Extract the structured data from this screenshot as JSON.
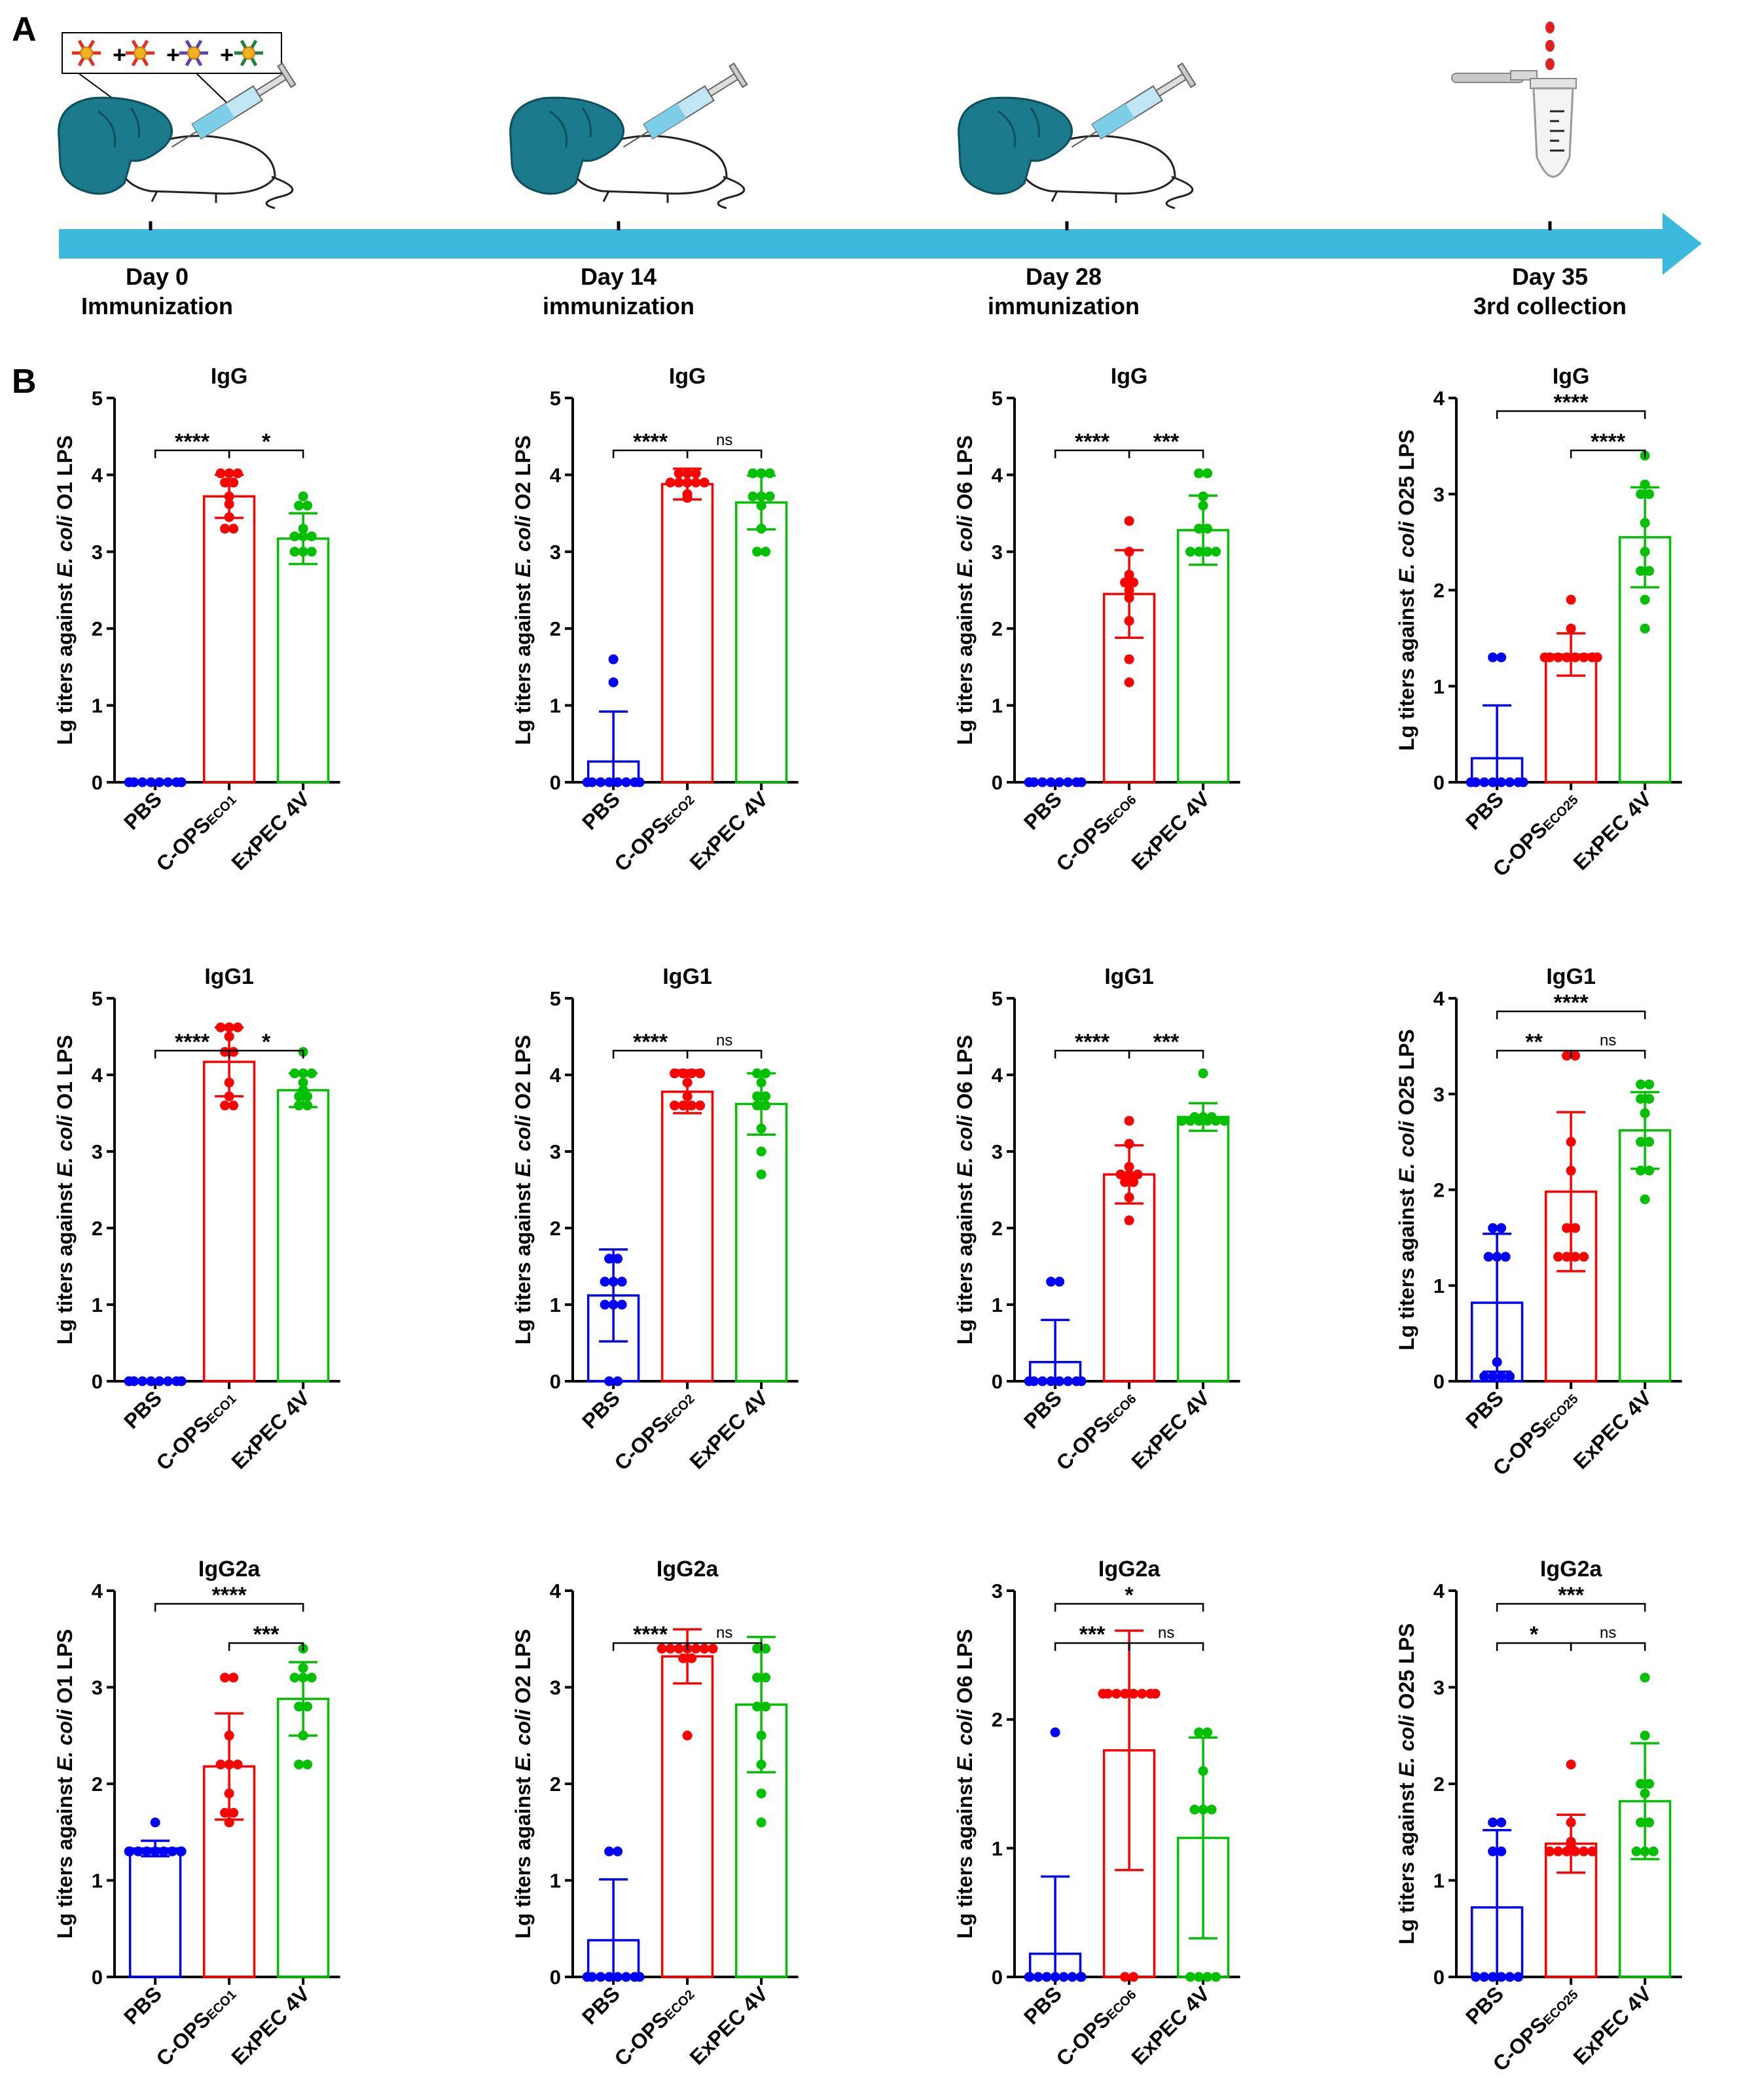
{
  "panel_labels": {
    "a": "A",
    "b": "B"
  },
  "timeline": {
    "arrow_color": "#3cb9dc",
    "mix_symbols": [
      "+",
      "+",
      "+"
    ],
    "events": [
      {
        "day": "Day 0",
        "event": "Immunization"
      },
      {
        "day": "Day 14",
        "event": "immunization"
      },
      {
        "day": "Day 28",
        "event": "immunization"
      },
      {
        "day": "Day 35",
        "event": "3rd collection"
      }
    ]
  },
  "colors": {
    "PBS": "#0000ff",
    "COPS": "#ff0000",
    "ExPEC": "#00c000"
  },
  "chart_data": [
    {
      "type": "bar",
      "title": "IgG",
      "ylabel_pre": "Lg titers against ",
      "ylabel_it": "E. coli",
      "ylabel_post": " O1 LPS",
      "ylim": [
        0,
        5
      ],
      "yticks": [
        "0",
        "1",
        "2",
        "3",
        "4",
        "5"
      ],
      "categories": [
        {
          "main": "PBS",
          "sub": ""
        },
        {
          "main": "C-OPS",
          "sub": "ECO1"
        },
        {
          "main": "ExPEC 4V",
          "sub": ""
        }
      ],
      "means": [
        0,
        3.72,
        3.17
      ],
      "sd": [
        0,
        0.28,
        0.33
      ],
      "points": [
        [
          0,
          0,
          0,
          0,
          0,
          0,
          0,
          0,
          0,
          0
        ],
        [
          4.02,
          4.02,
          4.02,
          3.9,
          3.9,
          3.72,
          3.62,
          3.45,
          3.3,
          3.3
        ],
        [
          3.72,
          3.6,
          3.6,
          3.3,
          3.2,
          3.2,
          3.2,
          3.0,
          3.0,
          3.0
        ]
      ],
      "significance": [
        {
          "groups": [
            0,
            1
          ],
          "label": "****"
        },
        {
          "groups": [
            1,
            2
          ],
          "label": "*"
        }
      ]
    },
    {
      "type": "bar",
      "title": "IgG",
      "ylabel_pre": "Lg titers against ",
      "ylabel_it": "E. coli",
      "ylabel_post": " O2 LPS",
      "ylim": [
        0,
        5
      ],
      "yticks": [
        "0",
        "1",
        "2",
        "3",
        "4",
        "5"
      ],
      "categories": [
        {
          "main": "PBS",
          "sub": ""
        },
        {
          "main": "C-OPS",
          "sub": "ECO2"
        },
        {
          "main": "ExPEC 4V",
          "sub": ""
        }
      ],
      "means": [
        0.27,
        3.88,
        3.64
      ],
      "sd": [
        0.65,
        0.2,
        0.35
      ],
      "points": [
        [
          1.6,
          1.3,
          0,
          0,
          0,
          0,
          0,
          0,
          0,
          0
        ],
        [
          4.02,
          4.02,
          4.02,
          3.9,
          3.9,
          3.9,
          3.9,
          3.9,
          3.75,
          3.7
        ],
        [
          4.02,
          4.02,
          4.02,
          3.72,
          3.72,
          3.72,
          3.6,
          3.3,
          3.0,
          3.0
        ]
      ],
      "significance": [
        {
          "groups": [
            0,
            1
          ],
          "label": "****"
        },
        {
          "groups": [
            1,
            2
          ],
          "label": "ns"
        }
      ]
    },
    {
      "type": "bar",
      "title": "IgG",
      "ylabel_pre": "Lg titers against ",
      "ylabel_it": "E. coli",
      "ylabel_post": " O6 LPS",
      "ylim": [
        0,
        5
      ],
      "yticks": [
        "0",
        "1",
        "2",
        "3",
        "4",
        "5"
      ],
      "categories": [
        {
          "main": "PBS",
          "sub": ""
        },
        {
          "main": "C-OPS",
          "sub": "ECO6"
        },
        {
          "main": "ExPEC 4V",
          "sub": ""
        }
      ],
      "means": [
        0,
        2.45,
        3.28
      ],
      "sd": [
        0,
        0.57,
        0.45
      ],
      "points": [
        [
          0,
          0,
          0,
          0,
          0,
          0,
          0,
          0,
          0,
          0
        ],
        [
          3.4,
          3.0,
          2.7,
          2.6,
          2.6,
          2.5,
          2.4,
          2.1,
          1.6,
          1.3
        ],
        [
          4.02,
          4.02,
          3.72,
          3.6,
          3.3,
          3.3,
          3.0,
          3.0,
          3.0,
          3.0
        ]
      ],
      "significance": [
        {
          "groups": [
            0,
            1
          ],
          "label": "****"
        },
        {
          "groups": [
            1,
            2
          ],
          "label": "***"
        }
      ]
    },
    {
      "type": "bar",
      "title": "IgG",
      "ylabel_pre": "Lg titers against ",
      "ylabel_it": "E. coli",
      "ylabel_post": " O25 LPS",
      "ylim": [
        0,
        4
      ],
      "yticks": [
        "0",
        "1",
        "2",
        "3",
        "4"
      ],
      "categories": [
        {
          "main": "PBS",
          "sub": ""
        },
        {
          "main": "C-OPS",
          "sub": "ECO25"
        },
        {
          "main": "ExPEC 4V",
          "sub": ""
        }
      ],
      "means": [
        0.25,
        1.33,
        2.55
      ],
      "sd": [
        0.55,
        0.22,
        0.52
      ],
      "points": [
        [
          1.3,
          1.3,
          0,
          0,
          0,
          0,
          0,
          0,
          0,
          0
        ],
        [
          1.9,
          1.6,
          1.3,
          1.3,
          1.3,
          1.3,
          1.3,
          1.3,
          1.3,
          1.3
        ],
        [
          3.4,
          3.1,
          3.0,
          3.0,
          2.7,
          2.4,
          2.2,
          2.2,
          1.9,
          1.6
        ]
      ],
      "significance": [
        {
          "groups": [
            0,
            2
          ],
          "label": "****"
        },
        {
          "groups": [
            1,
            2
          ],
          "label": "****"
        }
      ]
    },
    {
      "type": "bar",
      "title": "IgG1",
      "ylabel_pre": "Lg titers against ",
      "ylabel_it": "E. coli",
      "ylabel_post": " O1 LPS",
      "ylim": [
        0,
        5
      ],
      "yticks": [
        "0",
        "1",
        "2",
        "3",
        "4",
        "5"
      ],
      "categories": [
        {
          "main": "PBS",
          "sub": ""
        },
        {
          "main": "C-OPS",
          "sub": "ECO1"
        },
        {
          "main": "ExPEC 4V",
          "sub": ""
        }
      ],
      "means": [
        0,
        4.17,
        3.8
      ],
      "sd": [
        0,
        0.45,
        0.22
      ],
      "points": [
        [
          0,
          0,
          0,
          0,
          0,
          0,
          0,
          0,
          0,
          0
        ],
        [
          4.62,
          4.62,
          4.62,
          4.5,
          4.3,
          4.3,
          3.9,
          3.72,
          3.6,
          3.6
        ],
        [
          4.3,
          4.02,
          4.02,
          4.02,
          3.9,
          3.8,
          3.72,
          3.72,
          3.6,
          3.6
        ]
      ],
      "significance": [
        {
          "groups": [
            0,
            1
          ],
          "label": "****"
        },
        {
          "groups": [
            1,
            2
          ],
          "label": "*"
        }
      ]
    },
    {
      "type": "bar",
      "title": "IgG1",
      "ylabel_pre": "Lg titers against ",
      "ylabel_it": "E. coli",
      "ylabel_post": " O2 LPS",
      "ylim": [
        0,
        5
      ],
      "yticks": [
        "0",
        "1",
        "2",
        "3",
        "4",
        "5"
      ],
      "categories": [
        {
          "main": "PBS",
          "sub": ""
        },
        {
          "main": "C-OPS",
          "sub": "ECO2"
        },
        {
          "main": "ExPEC 4V",
          "sub": ""
        }
      ],
      "means": [
        1.12,
        3.78,
        3.62
      ],
      "sd": [
        0.6,
        0.28,
        0.4
      ],
      "points": [
        [
          1.6,
          1.6,
          1.3,
          1.3,
          1.3,
          1.0,
          1.0,
          1.0,
          0,
          0
        ],
        [
          4.02,
          4.02,
          4.02,
          4.02,
          3.9,
          3.72,
          3.6,
          3.6,
          3.6,
          3.6
        ],
        [
          4.02,
          4.02,
          3.9,
          3.72,
          3.72,
          3.6,
          3.6,
          3.3,
          3.0,
          2.7
        ]
      ],
      "significance": [
        {
          "groups": [
            0,
            1
          ],
          "label": "****"
        },
        {
          "groups": [
            1,
            2
          ],
          "label": "ns"
        }
      ]
    },
    {
      "type": "bar",
      "title": "IgG1",
      "ylabel_pre": "Lg titers against ",
      "ylabel_it": "E. coli",
      "ylabel_post": " O6 LPS",
      "ylim": [
        0,
        5
      ],
      "yticks": [
        "0",
        "1",
        "2",
        "3",
        "4",
        "5"
      ],
      "categories": [
        {
          "main": "PBS",
          "sub": ""
        },
        {
          "main": "C-OPS",
          "sub": "ECO6"
        },
        {
          "main": "ExPEC 4V",
          "sub": ""
        }
      ],
      "means": [
        0.25,
        2.7,
        3.45
      ],
      "sd": [
        0.55,
        0.38,
        0.18
      ],
      "points": [
        [
          1.3,
          1.3,
          0,
          0,
          0,
          0,
          0,
          0,
          0,
          0
        ],
        [
          3.4,
          3.1,
          2.8,
          2.7,
          2.7,
          2.7,
          2.6,
          2.6,
          2.4,
          2.1
        ],
        [
          4.02,
          3.45,
          3.45,
          3.45,
          3.4,
          3.4,
          3.4,
          3.4,
          3.4,
          3.4
        ]
      ],
      "significance": [
        {
          "groups": [
            0,
            1
          ],
          "label": "****"
        },
        {
          "groups": [
            1,
            2
          ],
          "label": "***"
        }
      ]
    },
    {
      "type": "bar",
      "title": "IgG1",
      "ylabel_pre": "Lg titers against ",
      "ylabel_it": "E. coli",
      "ylabel_post": " O25 LPS",
      "ylim": [
        0,
        4
      ],
      "yticks": [
        "0",
        "1",
        "2",
        "3",
        "4"
      ],
      "categories": [
        {
          "main": "PBS",
          "sub": ""
        },
        {
          "main": "C-OPS",
          "sub": "ECO25"
        },
        {
          "main": "ExPEC 4V",
          "sub": ""
        }
      ],
      "means": [
        0.82,
        1.98,
        2.62
      ],
      "sd": [
        0.72,
        0.83,
        0.4
      ],
      "points": [
        [
          1.6,
          1.6,
          1.3,
          1.3,
          1.3,
          0.2,
          0.05,
          0.05,
          0.05,
          0.05
        ],
        [
          3.4,
          3.4,
          2.5,
          2.2,
          1.6,
          1.6,
          1.3,
          1.3,
          1.3,
          1.3
        ],
        [
          3.1,
          3.1,
          2.95,
          2.95,
          2.8,
          2.5,
          2.5,
          2.2,
          2.2,
          1.9
        ]
      ],
      "significance": [
        {
          "groups": [
            0,
            1
          ],
          "label": "**"
        },
        {
          "groups": [
            0,
            2
          ],
          "label": "****"
        },
        {
          "groups": [
            1,
            2
          ],
          "label": "ns"
        }
      ]
    },
    {
      "type": "bar",
      "title": "IgG2a",
      "ylabel_pre": "Lg titers against ",
      "ylabel_it": "E. coli",
      "ylabel_post": " O1 LPS",
      "ylim": [
        0,
        4
      ],
      "yticks": [
        "0",
        "1",
        "2",
        "3",
        "4"
      ],
      "categories": [
        {
          "main": "PBS",
          "sub": ""
        },
        {
          "main": "C-OPS",
          "sub": "ECO1"
        },
        {
          "main": "ExPEC 4V",
          "sub": ""
        }
      ],
      "means": [
        1.33,
        2.18,
        2.88
      ],
      "sd": [
        0.08,
        0.55,
        0.38
      ],
      "points": [
        [
          1.6,
          1.3,
          1.3,
          1.3,
          1.3,
          1.3,
          1.3,
          1.3,
          1.3,
          1.3
        ],
        [
          3.1,
          3.1,
          2.5,
          2.2,
          2.2,
          2.2,
          1.9,
          1.7,
          1.7,
          1.6
        ],
        [
          3.4,
          3.2,
          3.1,
          3.1,
          3.1,
          2.8,
          2.8,
          2.5,
          2.2,
          2.2
        ]
      ],
      "significance": [
        {
          "groups": [
            0,
            2
          ],
          "label": "****"
        },
        {
          "groups": [
            1,
            2
          ],
          "label": "***"
        }
      ]
    },
    {
      "type": "bar",
      "title": "IgG2a",
      "ylabel_pre": "Lg titers against ",
      "ylabel_it": "E. coli",
      "ylabel_post": " O2 LPS",
      "ylim": [
        0,
        4
      ],
      "yticks": [
        "0",
        "1",
        "2",
        "3",
        "4"
      ],
      "categories": [
        {
          "main": "PBS",
          "sub": ""
        },
        {
          "main": "C-OPS",
          "sub": "ECO2"
        },
        {
          "main": "ExPEC 4V",
          "sub": ""
        }
      ],
      "means": [
        0.38,
        3.32,
        2.82
      ],
      "sd": [
        0.63,
        0.28,
        0.7
      ],
      "points": [
        [
          1.3,
          1.3,
          0,
          0,
          0,
          0,
          0,
          0,
          0,
          0
        ],
        [
          3.4,
          3.4,
          3.4,
          3.4,
          3.4,
          3.4,
          3.4,
          3.3,
          3.3,
          2.5
        ],
        [
          3.4,
          3.4,
          3.1,
          3.1,
          2.8,
          2.8,
          2.5,
          2.2,
          1.9,
          1.6
        ]
      ],
      "significance": [
        {
          "groups": [
            0,
            1
          ],
          "label": "****"
        },
        {
          "groups": [
            1,
            2
          ],
          "label": "ns"
        }
      ]
    },
    {
      "type": "bar",
      "title": "IgG2a",
      "ylabel_pre": "Lg titers against ",
      "ylabel_it": "E. coli",
      "ylabel_post": " O6 LPS",
      "ylim": [
        0,
        3
      ],
      "yticks": [
        "0",
        "1",
        "2",
        "3"
      ],
      "categories": [
        {
          "main": "PBS",
          "sub": ""
        },
        {
          "main": "C-OPS",
          "sub": "ECO6"
        },
        {
          "main": "ExPEC 4V",
          "sub": ""
        }
      ],
      "means": [
        0.18,
        1.76,
        1.08
      ],
      "sd": [
        0.6,
        0.93,
        0.78
      ],
      "points": [
        [
          1.9,
          0,
          0,
          0,
          0,
          0,
          0,
          0,
          0,
          0
        ],
        [
          2.2,
          2.2,
          2.2,
          2.2,
          2.2,
          2.2,
          2.2,
          2.2,
          0,
          0
        ],
        [
          1.9,
          1.9,
          1.6,
          1.3,
          1.3,
          1.3,
          0,
          0,
          0,
          0
        ]
      ],
      "significance": [
        {
          "groups": [
            0,
            1
          ],
          "label": "***"
        },
        {
          "groups": [
            0,
            2
          ],
          "label": "*"
        },
        {
          "groups": [
            1,
            2
          ],
          "label": "ns"
        }
      ]
    },
    {
      "type": "bar",
      "title": "IgG2a",
      "ylabel_pre": "Lg titers against ",
      "ylabel_it": "E. coli",
      "ylabel_post": " O25 LPS",
      "ylim": [
        0,
        4
      ],
      "yticks": [
        "0",
        "1",
        "2",
        "3",
        "4"
      ],
      "categories": [
        {
          "main": "PBS",
          "sub": ""
        },
        {
          "main": "C-OPS",
          "sub": "ECO25"
        },
        {
          "main": "ExPEC 4V",
          "sub": ""
        }
      ],
      "means": [
        0.72,
        1.38,
        1.82
      ],
      "sd": [
        0.8,
        0.3,
        0.6
      ],
      "points": [
        [
          1.6,
          1.6,
          1.3,
          1.3,
          0,
          0,
          0,
          0,
          0,
          0
        ],
        [
          2.2,
          1.6,
          1.4,
          1.35,
          1.3,
          1.3,
          1.3,
          1.3,
          1.3,
          1.3
        ],
        [
          3.1,
          2.5,
          2.0,
          2.0,
          1.9,
          1.6,
          1.6,
          1.3,
          1.3,
          1.3
        ]
      ],
      "significance": [
        {
          "groups": [
            0,
            1
          ],
          "label": "*"
        },
        {
          "groups": [
            0,
            2
          ],
          "label": "***"
        },
        {
          "groups": [
            1,
            2
          ],
          "label": "ns"
        }
      ]
    }
  ]
}
